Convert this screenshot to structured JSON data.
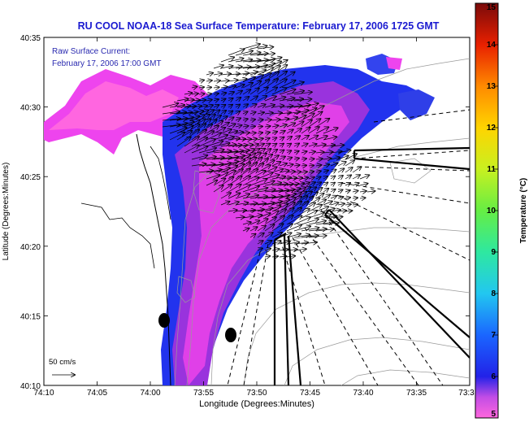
{
  "chart_data": {
    "type": "heatmap",
    "title": "RU COOL  NOAA-18  Sea Surface Temperature:  February 17, 2006 1725 GMT",
    "annotation_lines": [
      "Raw Surface Current:",
      "February 17, 2006 17:00 GMT"
    ],
    "xlabel": "Longitude (Degrees:Minutes)",
    "ylabel": "Latitude (Degrees:Minutes)",
    "x_ticks": [
      "74:10",
      "74:05",
      "74:00",
      "73:55",
      "73:50",
      "73:45",
      "73:40",
      "73:35",
      "73:3"
    ],
    "y_ticks": [
      "40:10",
      "40:15",
      "40:20",
      "40:25",
      "40:30",
      "40:35"
    ],
    "colorbar": {
      "label": "Temperature (°C)",
      "min": 5,
      "max": 15,
      "ticks": [
        "5",
        "6",
        "7",
        "8",
        "9",
        "10",
        "11",
        "12",
        "13",
        "14",
        "15"
      ]
    },
    "scale_label": "50 cm/s",
    "sst_min_c": 5.0,
    "sst_max_c": 6.5,
    "colors": {
      "title": "#1a1ad0",
      "annotation": "#2a2ab0",
      "land_outline": "#000000",
      "contours": "#9a9a9a",
      "vectors": "#000000"
    }
  }
}
